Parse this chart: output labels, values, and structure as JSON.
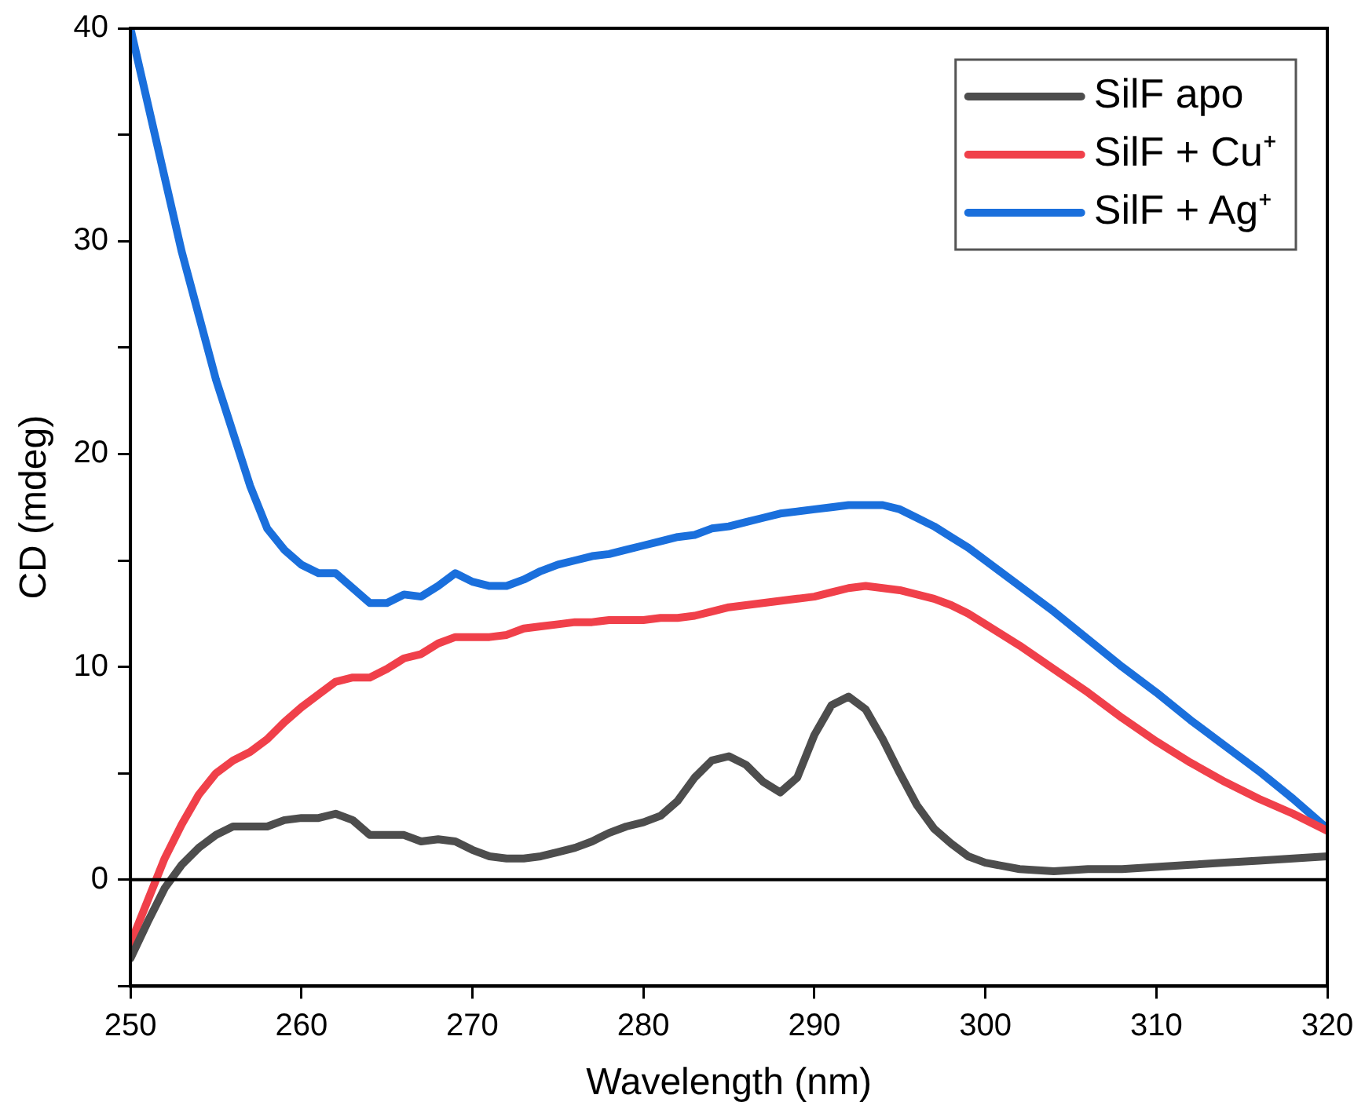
{
  "chart_data": {
    "type": "line",
    "xlabel": "Wavelength (nm)",
    "ylabel": "CD (mdeg)",
    "x": [
      250,
      251,
      252,
      253,
      254,
      255,
      256,
      257,
      258,
      259,
      260,
      261,
      262,
      263,
      264,
      265,
      266,
      267,
      268,
      269,
      270,
      271,
      272,
      273,
      274,
      275,
      276,
      277,
      278,
      279,
      280,
      281,
      282,
      283,
      284,
      285,
      286,
      287,
      288,
      289,
      290,
      291,
      292,
      293,
      294,
      295,
      296,
      297,
      298,
      299,
      300,
      302,
      304,
      306,
      308,
      310,
      312,
      314,
      316,
      318,
      320
    ],
    "series": [
      {
        "name": "SilF apo",
        "color": "#4d4d4d",
        "values": [
          -3.7,
          -2,
          -0.4,
          0.7,
          1.5,
          2.1,
          2.5,
          2.5,
          2.5,
          2.8,
          2.9,
          2.9,
          3.1,
          2.8,
          2.1,
          2.1,
          2.1,
          1.8,
          1.9,
          1.8,
          1.4,
          1.1,
          1,
          1,
          1.1,
          1.3,
          1.5,
          1.8,
          2.2,
          2.5,
          2.7,
          3,
          3.7,
          4.8,
          5.6,
          5.8,
          5.4,
          4.6,
          4.1,
          4.8,
          6.8,
          8.2,
          8.6,
          8,
          6.6,
          5,
          3.5,
          2.4,
          1.7,
          1.1,
          0.8,
          0.5,
          0.4,
          0.5,
          0.5,
          0.6,
          0.7,
          0.8,
          0.9,
          1,
          1.1
        ]
      },
      {
        "name": "SilF + Cu⁺",
        "color": "#f0404a",
        "values": [
          -3,
          -1,
          1,
          2.6,
          4,
          5,
          5.6,
          6,
          6.6,
          7.4,
          8.1,
          8.7,
          9.3,
          9.5,
          9.5,
          9.9,
          10.4,
          10.6,
          11.1,
          11.4,
          11.4,
          11.4,
          11.5,
          11.8,
          11.9,
          12,
          12.1,
          12.1,
          12.2,
          12.2,
          12.2,
          12.3,
          12.3,
          12.4,
          12.6,
          12.8,
          12.9,
          13,
          13.1,
          13.2,
          13.3,
          13.5,
          13.7,
          13.8,
          13.7,
          13.6,
          13.4,
          13.2,
          12.9,
          12.5,
          12,
          11,
          9.9,
          8.8,
          7.6,
          6.5,
          5.5,
          4.6,
          3.8,
          3.1,
          2.3
        ]
      },
      {
        "name": "SilF + Ag⁺",
        "color": "#1a6fdc",
        "values": [
          40,
          36.5,
          33,
          29.5,
          26.5,
          23.5,
          21,
          18.5,
          16.5,
          15.5,
          14.8,
          14.4,
          14.4,
          13.7,
          13,
          13,
          13.4,
          13.3,
          13.8,
          14.4,
          14,
          13.8,
          13.8,
          14.1,
          14.5,
          14.8,
          15,
          15.2,
          15.3,
          15.5,
          15.7,
          15.9,
          16.1,
          16.2,
          16.5,
          16.6,
          16.8,
          17,
          17.2,
          17.3,
          17.4,
          17.5,
          17.6,
          17.6,
          17.6,
          17.4,
          17,
          16.6,
          16.1,
          15.6,
          15,
          13.8,
          12.6,
          11.3,
          10,
          8.8,
          7.5,
          6.3,
          5.1,
          3.8,
          2.4
        ]
      }
    ],
    "xlim": [
      250,
      320
    ],
    "xticks": [
      250,
      260,
      270,
      280,
      290,
      300,
      310,
      320
    ],
    "ylim": [
      -5,
      40
    ],
    "yticks": [
      {
        "value": -5,
        "label": null
      },
      0,
      {
        "value": 5,
        "label": null
      },
      10,
      {
        "value": 15,
        "label": null
      },
      20,
      {
        "value": 25,
        "label": null
      },
      30,
      {
        "value": 35,
        "label": null
      },
      40
    ],
    "ref_lines": [
      {
        "axis": "y",
        "value": 0
      }
    ],
    "grid": false,
    "legend": "top right",
    "marker": "none",
    "line_style": "solid"
  }
}
